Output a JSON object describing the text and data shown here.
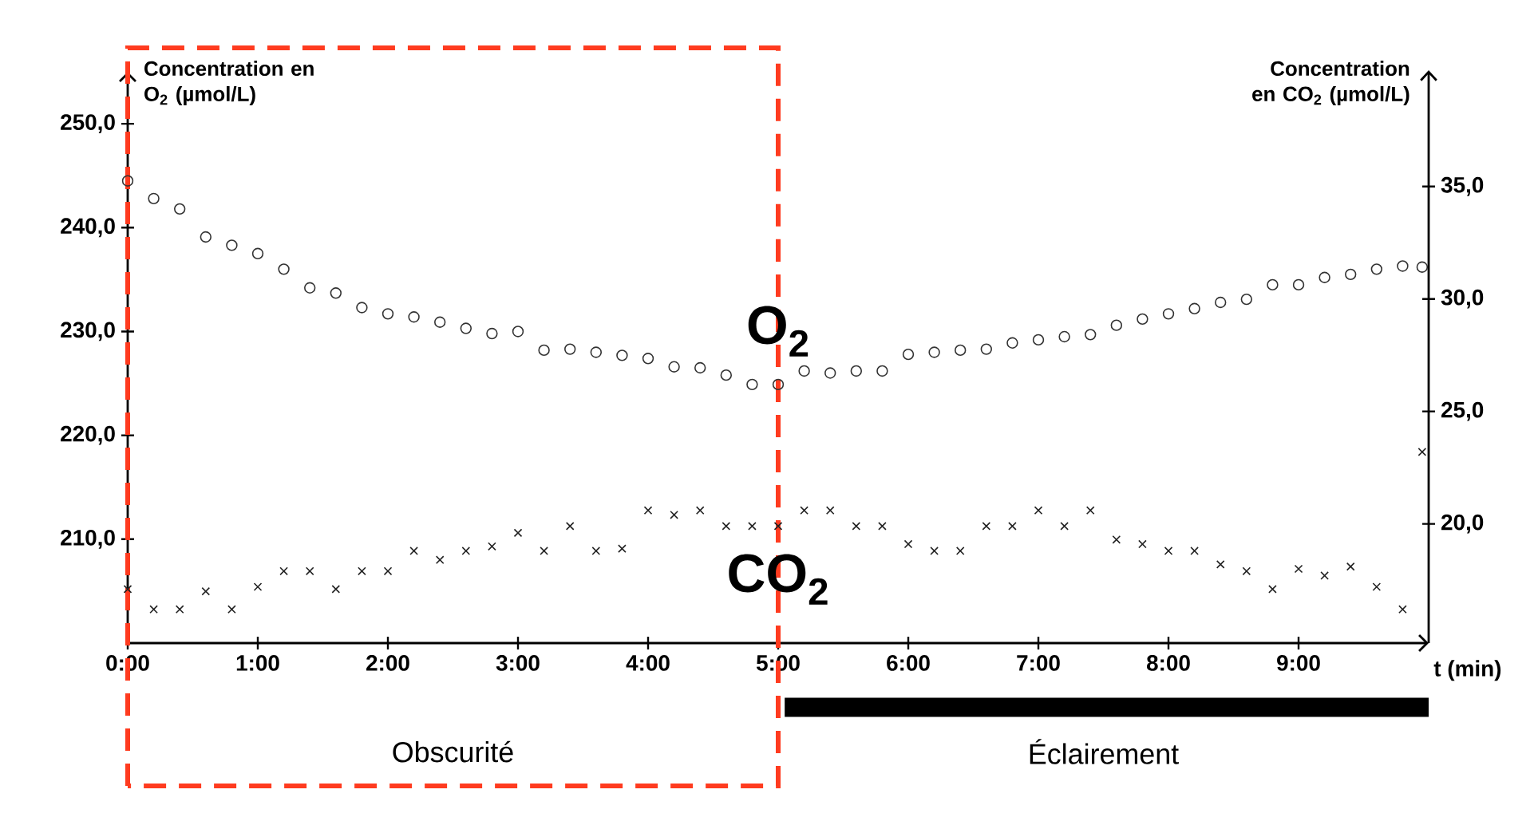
{
  "chart_data": {
    "type": "scatter",
    "xlabel": "t (min)",
    "ylabel": "Concentration en O$_{2}$ (µmol/L)",
    "y2label": "Concentration en CO$_{2}$ (µmol/L)",
    "xlim": [
      0,
      10
    ],
    "ylim": [
      200,
      255
    ],
    "y2lim": [
      14.7,
      40.1
    ],
    "xticks": [
      {
        "value": 0,
        "label": "0:00"
      },
      {
        "value": 1,
        "label": "1:00"
      },
      {
        "value": 2,
        "label": "2:00"
      },
      {
        "value": 3,
        "label": "3:00"
      },
      {
        "value": 4,
        "label": "4:00"
      },
      {
        "value": 5,
        "label": "5:00"
      },
      {
        "value": 6,
        "label": "6:00"
      },
      {
        "value": 7,
        "label": "7:00"
      },
      {
        "value": 8,
        "label": "8:00"
      },
      {
        "value": 9,
        "label": "9:00"
      }
    ],
    "yticks": [
      {
        "value": 210,
        "label": "210,0"
      },
      {
        "value": 220,
        "label": "220,0"
      },
      {
        "value": 230,
        "label": "230,0"
      },
      {
        "value": 240,
        "label": "240,0"
      },
      {
        "value": 250,
        "label": "250,0"
      }
    ],
    "y2ticks": [
      {
        "value": 20,
        "label": "20,0"
      },
      {
        "value": 25,
        "label": "25,0"
      },
      {
        "value": 30,
        "label": "30,0"
      },
      {
        "value": 35,
        "label": "35,0"
      }
    ],
    "x": [
      0,
      0.2,
      0.4,
      0.6,
      0.8,
      1.0,
      1.2,
      1.4,
      1.6,
      1.8,
      2.0,
      2.2,
      2.4,
      2.6,
      2.8,
      3.0,
      3.2,
      3.4,
      3.6,
      3.8,
      4.0,
      4.2,
      4.4,
      4.6,
      4.8,
      5.0,
      5.2,
      5.4,
      5.6,
      5.8,
      6.0,
      6.2,
      6.4,
      6.6,
      6.8,
      7.0,
      7.2,
      7.4,
      7.6,
      7.8,
      8.0,
      8.2,
      8.4,
      8.6,
      8.8,
      9.0,
      9.2,
      9.4,
      9.6,
      9.8,
      9.95
    ],
    "series": [
      {
        "name": "O$_{2}$",
        "color": "#333333",
        "marker": "circle",
        "values": [
          244.5,
          242.8,
          241.8,
          239.1,
          238.3,
          237.5,
          236.0,
          234.2,
          233.7,
          232.3,
          231.7,
          231.4,
          230.9,
          230.3,
          229.8,
          230.0,
          228.2,
          228.3,
          228.0,
          227.7,
          227.4,
          226.6,
          226.5,
          225.8,
          224.9,
          224.9,
          226.2,
          226.0,
          226.2,
          226.2,
          227.8,
          228.0,
          228.2,
          228.3,
          228.9,
          229.2,
          229.5,
          229.7,
          230.6,
          231.2,
          231.7,
          232.2,
          232.8,
          233.1,
          234.5,
          234.5,
          235.2,
          235.5,
          236.0,
          236.3,
          236.2
        ]
      },
      {
        "name": "CO$_{2}$",
        "color": "#222222",
        "marker": "cross",
        "axis": "y2",
        "values": [
          17.1,
          16.2,
          16.2,
          17.0,
          16.2,
          17.2,
          17.9,
          17.9,
          17.1,
          17.9,
          17.9,
          18.8,
          18.4,
          18.8,
          19.0,
          19.6,
          18.8,
          19.9,
          18.8,
          18.9,
          20.6,
          20.4,
          20.6,
          19.9,
          19.9,
          19.9,
          20.6,
          20.6,
          19.9,
          19.9,
          19.1,
          18.8,
          18.8,
          19.9,
          19.9,
          20.6,
          19.9,
          20.6,
          19.3,
          19.1,
          18.8,
          18.8,
          18.2,
          17.9,
          17.1,
          18.0,
          17.7,
          18.1,
          17.2,
          16.2,
          23.2
        ]
      }
    ],
    "annotations": [
      "Obscurité",
      "Éclairement"
    ]
  }
}
